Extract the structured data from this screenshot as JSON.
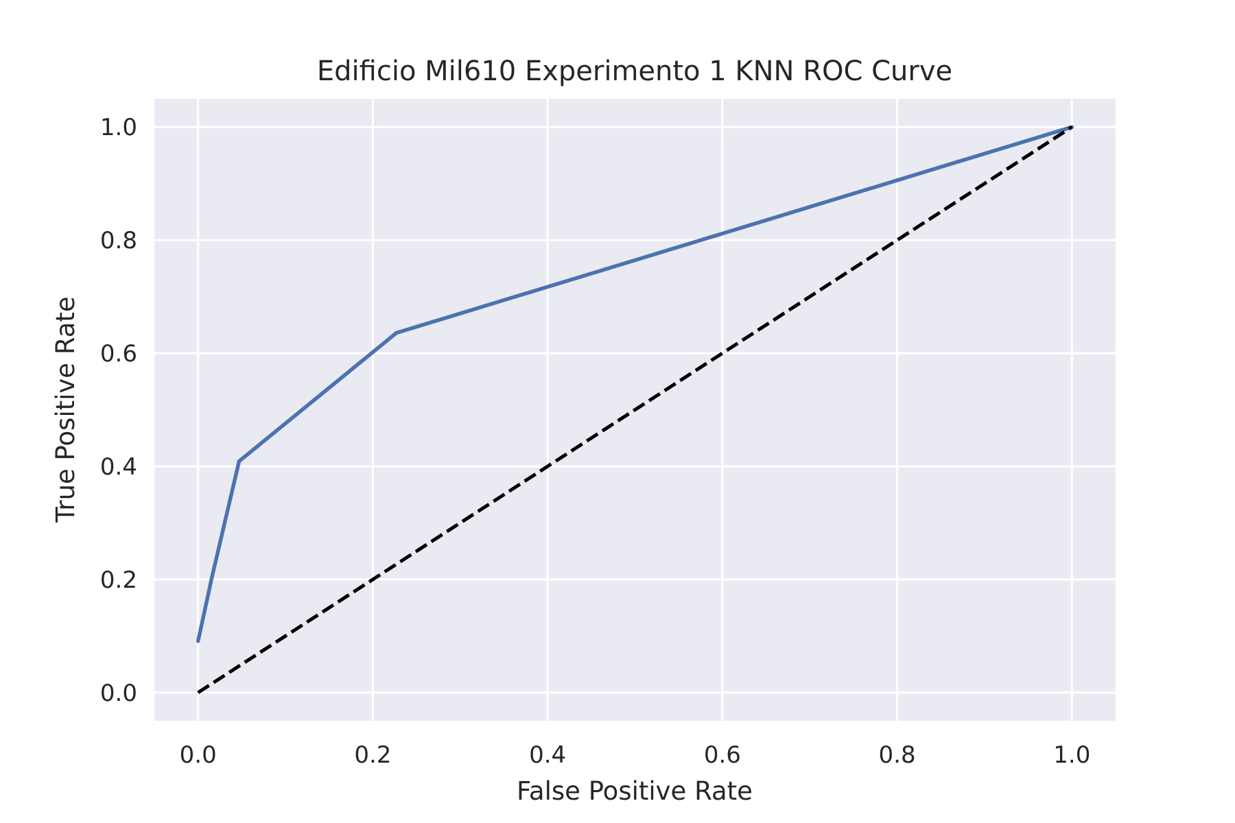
{
  "chart_data": {
    "type": "line",
    "title": "Edificio Mil610 Experimento 1 KNN ROC Curve",
    "xlabel": "False Positive Rate",
    "ylabel": "True Positive Rate",
    "xlim": [
      -0.05,
      1.05
    ],
    "ylim": [
      -0.05,
      1.05
    ],
    "xticks": [
      0.0,
      0.2,
      0.4,
      0.6,
      0.8,
      1.0
    ],
    "yticks": [
      0.0,
      0.2,
      0.4,
      0.6,
      0.8,
      1.0
    ],
    "xtick_labels": [
      "0.0",
      "0.2",
      "0.4",
      "0.6",
      "0.8",
      "1.0"
    ],
    "ytick_labels": [
      "0.0",
      "0.2",
      "0.4",
      "0.6",
      "0.8",
      "1.0"
    ],
    "grid": true,
    "series": [
      {
        "x": [
          0.0,
          0.016,
          0.047,
          0.227,
          1.0
        ],
        "y": [
          0.091,
          0.205,
          0.409,
          0.636,
          1.0
        ],
        "color": "#4c72b0",
        "style": "solid"
      },
      {
        "x": [
          0.0,
          1.0
        ],
        "y": [
          0.0,
          1.0
        ],
        "color": "#000000",
        "style": "dashed"
      }
    ],
    "colors": {
      "plot_background": "#eaeaf2",
      "grid": "#ffffff",
      "text": "#262626"
    }
  }
}
